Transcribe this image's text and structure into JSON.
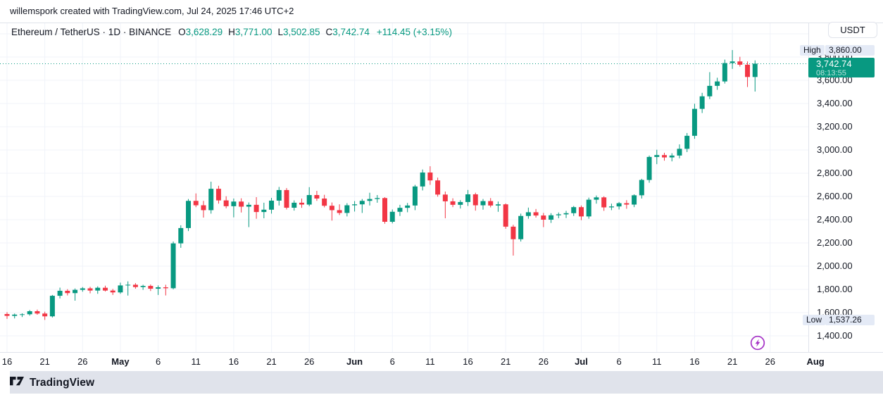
{
  "attribution": "willemspork created with TradingView.com, Jul 24, 2025 17:46 UTC+2",
  "legend": {
    "title": "Ethereum / TetherUS · 1D · BINANCE",
    "ohlc": [
      {
        "label": "O",
        "value": "3,628.29"
      },
      {
        "label": "H",
        "value": "3,771.00"
      },
      {
        "label": "L",
        "value": "3,502.85"
      },
      {
        "label": "C",
        "value": "3,742.74"
      }
    ],
    "change": "+114.45 (+3.15%)"
  },
  "price_scale": {
    "currency": "USDT",
    "high_label": "High",
    "high_value": "3,860.00",
    "low_label": "Low",
    "low_value": "1,537.26",
    "last_price": "3,742.74",
    "countdown": "08:13:55",
    "ticks": [
      "3,800.00",
      "3,600.00",
      "3,400.00",
      "3,200.00",
      "3,000.00",
      "2,800.00",
      "2,600.00",
      "2,400.00",
      "2,200.00",
      "2,000.00",
      "1,800.00",
      "1,600.00",
      "1,400.00"
    ]
  },
  "time_scale": {
    "ticks": [
      {
        "label": "16",
        "day": 0
      },
      {
        "label": "21",
        "day": 5
      },
      {
        "label": "26",
        "day": 10
      },
      {
        "label": "May",
        "day": 15,
        "bold": true
      },
      {
        "label": "6",
        "day": 20
      },
      {
        "label": "11",
        "day": 25
      },
      {
        "label": "16",
        "day": 30
      },
      {
        "label": "21",
        "day": 35
      },
      {
        "label": "26",
        "day": 40
      },
      {
        "label": "Jun",
        "day": 46,
        "bold": true
      },
      {
        "label": "6",
        "day": 51
      },
      {
        "label": "11",
        "day": 56
      },
      {
        "label": "16",
        "day": 61
      },
      {
        "label": "21",
        "day": 66
      },
      {
        "label": "26",
        "day": 71
      },
      {
        "label": "Jul",
        "day": 76,
        "bold": true
      },
      {
        "label": "6",
        "day": 81
      },
      {
        "label": "11",
        "day": 86
      },
      {
        "label": "16",
        "day": 91
      },
      {
        "label": "21",
        "day": 96
      },
      {
        "label": "26",
        "day": 101
      },
      {
        "label": "Aug",
        "day": 107,
        "bold": true
      }
    ]
  },
  "footer": {
    "brand": "TradingView"
  },
  "colors": {
    "up": "#089981",
    "down": "#F23645",
    "grid": "#F0F3FA",
    "border": "#E0E3EB",
    "text": "#131722",
    "chip_bg": "#E4EAF6",
    "event_purple": "#A531C6",
    "badge_bg": "#089981"
  },
  "chart_data": {
    "type": "candlestick",
    "title": "Ethereum / TetherUS",
    "exchange": "BINANCE",
    "interval": "1D",
    "quote_currency": "USDT",
    "y_axis": {
      "min": 1400,
      "max": 4000,
      "step": 200
    },
    "range_high": 3860.0,
    "range_low": 1537.26,
    "last_close": 3742.74,
    "change_abs": 114.45,
    "change_pct": 3.15,
    "legend_note": "columns are date, open, high, low, close",
    "candles": [
      [
        "Apr 16",
        1588,
        1604,
        1546,
        1572
      ],
      [
        "Apr 17",
        1572,
        1592,
        1550,
        1583
      ],
      [
        "Apr 18",
        1583,
        1594,
        1562,
        1586
      ],
      [
        "Apr 19",
        1586,
        1622,
        1574,
        1612
      ],
      [
        "Apr 20",
        1612,
        1626,
        1582,
        1592
      ],
      [
        "Apr 21",
        1592,
        1608,
        1537.26,
        1568
      ],
      [
        "Apr 22",
        1568,
        1752,
        1558,
        1745
      ],
      [
        "Apr 23",
        1745,
        1815,
        1722,
        1788
      ],
      [
        "Apr 24",
        1788,
        1802,
        1748,
        1768
      ],
      [
        "Apr 25",
        1768,
        1808,
        1703,
        1796
      ],
      [
        "Apr 26",
        1796,
        1820,
        1780,
        1809
      ],
      [
        "Apr 27",
        1809,
        1822,
        1766,
        1790
      ],
      [
        "Apr 28",
        1790,
        1826,
        1762,
        1814
      ],
      [
        "Apr 29",
        1814,
        1832,
        1782,
        1790
      ],
      [
        "Apr 30",
        1790,
        1804,
        1752,
        1774
      ],
      [
        "May 1",
        1774,
        1858,
        1762,
        1834
      ],
      [
        "May 2",
        1834,
        1869,
        1747,
        1840
      ],
      [
        "May 3",
        1840,
        1854,
        1806,
        1820
      ],
      [
        "May 4",
        1820,
        1840,
        1796,
        1830
      ],
      [
        "May 5",
        1830,
        1842,
        1786,
        1806
      ],
      [
        "May 6",
        1806,
        1834,
        1752,
        1818
      ],
      [
        "May 7",
        1818,
        1840,
        1748,
        1810
      ],
      [
        "May 8",
        1810,
        2212,
        1800,
        2196
      ],
      [
        "May 9",
        2196,
        2352,
        2158,
        2328
      ],
      [
        "May 10",
        2328,
        2578,
        2302,
        2562
      ],
      [
        "May 11",
        2562,
        2626,
        2508,
        2524
      ],
      [
        "May 12",
        2524,
        2562,
        2418,
        2482
      ],
      [
        "May 13",
        2482,
        2727,
        2452,
        2666
      ],
      [
        "May 14",
        2666,
        2692,
        2538,
        2566
      ],
      [
        "May 15",
        2566,
        2602,
        2498,
        2516
      ],
      [
        "May 16",
        2516,
        2582,
        2420,
        2556
      ],
      [
        "May 17",
        2556,
        2584,
        2462,
        2512
      ],
      [
        "May 18",
        2512,
        2548,
        2336,
        2528
      ],
      [
        "May 19",
        2528,
        2594,
        2408,
        2466
      ],
      [
        "May 20",
        2466,
        2546,
        2412,
        2486
      ],
      [
        "May 21",
        2486,
        2588,
        2452,
        2564
      ],
      [
        "May 22",
        2564,
        2682,
        2522,
        2655
      ],
      [
        "May 23",
        2655,
        2672,
        2488,
        2503
      ],
      [
        "May 24",
        2503,
        2566,
        2478,
        2546
      ],
      [
        "May 25",
        2546,
        2582,
        2502,
        2530
      ],
      [
        "May 26",
        2530,
        2680,
        2516,
        2612
      ],
      [
        "May 27",
        2612,
        2648,
        2562,
        2582
      ],
      [
        "May 28",
        2582,
        2614,
        2506,
        2520
      ],
      [
        "May 29",
        2520,
        2548,
        2392,
        2482
      ],
      [
        "May 30",
        2482,
        2532,
        2440,
        2458
      ],
      [
        "May 31",
        2458,
        2542,
        2428,
        2524
      ],
      [
        "Jun 1",
        2524,
        2560,
        2470,
        2532
      ],
      [
        "Jun 2",
        2532,
        2578,
        2458,
        2562
      ],
      [
        "Jun 3",
        2562,
        2632,
        2522,
        2578
      ],
      [
        "Jun 4",
        2578,
        2612,
        2546,
        2586
      ],
      [
        "Jun 5",
        2586,
        2594,
        2365,
        2382
      ],
      [
        "Jun 6",
        2382,
        2488,
        2368,
        2468
      ],
      [
        "Jun 7",
        2468,
        2528,
        2432,
        2502
      ],
      [
        "Jun 8",
        2502,
        2544,
        2464,
        2522
      ],
      [
        "Jun 9",
        2522,
        2700,
        2482,
        2686
      ],
      [
        "Jun 10",
        2686,
        2832,
        2652,
        2806
      ],
      [
        "Jun 11",
        2806,
        2860,
        2700,
        2738
      ],
      [
        "Jun 12",
        2738,
        2762,
        2598,
        2616
      ],
      [
        "Jun 13",
        2616,
        2642,
        2412,
        2558
      ],
      [
        "Jun 14",
        2558,
        2584,
        2508,
        2528
      ],
      [
        "Jun 15",
        2528,
        2568,
        2496,
        2552
      ],
      [
        "Jun 16",
        2552,
        2656,
        2518,
        2618
      ],
      [
        "Jun 17",
        2618,
        2632,
        2478,
        2524
      ],
      [
        "Jun 18",
        2524,
        2578,
        2486,
        2560
      ],
      [
        "Jun 19",
        2560,
        2586,
        2506,
        2522
      ],
      [
        "Jun 20",
        2522,
        2556,
        2468,
        2532
      ],
      [
        "Jun 21",
        2532,
        2540,
        2322,
        2340
      ],
      [
        "Jun 22",
        2340,
        2356,
        2091,
        2232
      ],
      [
        "Jun 23",
        2232,
        2452,
        2212,
        2432
      ],
      [
        "Jun 24",
        2432,
        2504,
        2408,
        2464
      ],
      [
        "Jun 25",
        2464,
        2492,
        2418,
        2436
      ],
      [
        "Jun 26",
        2436,
        2458,
        2336,
        2400
      ],
      [
        "Jun 27",
        2400,
        2456,
        2372,
        2438
      ],
      [
        "Jun 28",
        2438,
        2462,
        2412,
        2446
      ],
      [
        "Jun 29",
        2446,
        2476,
        2414,
        2456
      ],
      [
        "Jun 30",
        2456,
        2518,
        2432,
        2508
      ],
      [
        "Jul 1",
        2508,
        2522,
        2396,
        2428
      ],
      [
        "Jul 2",
        2428,
        2590,
        2408,
        2572
      ],
      [
        "Jul 3",
        2572,
        2608,
        2538,
        2592
      ],
      [
        "Jul 4",
        2592,
        2602,
        2476,
        2506
      ],
      [
        "Jul 5",
        2506,
        2538,
        2482,
        2514
      ],
      [
        "Jul 6",
        2514,
        2552,
        2488,
        2542
      ],
      [
        "Jul 7",
        2542,
        2568,
        2494,
        2530
      ],
      [
        "Jul 8",
        2530,
        2618,
        2508,
        2610
      ],
      [
        "Jul 9",
        2610,
        2752,
        2582,
        2742
      ],
      [
        "Jul 10",
        2742,
        2952,
        2718,
        2940
      ],
      [
        "Jul 11",
        2940,
        3002,
        2878,
        2956
      ],
      [
        "Jul 12",
        2956,
        2976,
        2908,
        2936
      ],
      [
        "Jul 13",
        2936,
        2972,
        2902,
        2952
      ],
      [
        "Jul 14",
        2952,
        3048,
        2928,
        3010
      ],
      [
        "Jul 15",
        3010,
        3146,
        2982,
        3122
      ],
      [
        "Jul 16",
        3122,
        3398,
        3096,
        3354
      ],
      [
        "Jul 17",
        3354,
        3492,
        3318,
        3462
      ],
      [
        "Jul 18",
        3462,
        3670,
        3438,
        3552
      ],
      [
        "Jul 19",
        3552,
        3622,
        3518,
        3590
      ],
      [
        "Jul 20",
        3590,
        3778,
        3572,
        3748
      ],
      [
        "Jul 21",
        3748,
        3860,
        3698,
        3762
      ],
      [
        "Jul 22",
        3762,
        3802,
        3718,
        3734
      ],
      [
        "Jul 23",
        3734,
        3762,
        3542,
        3628.29
      ],
      [
        "Jul 24",
        3628.29,
        3771.0,
        3502.85,
        3742.74
      ]
    ]
  }
}
